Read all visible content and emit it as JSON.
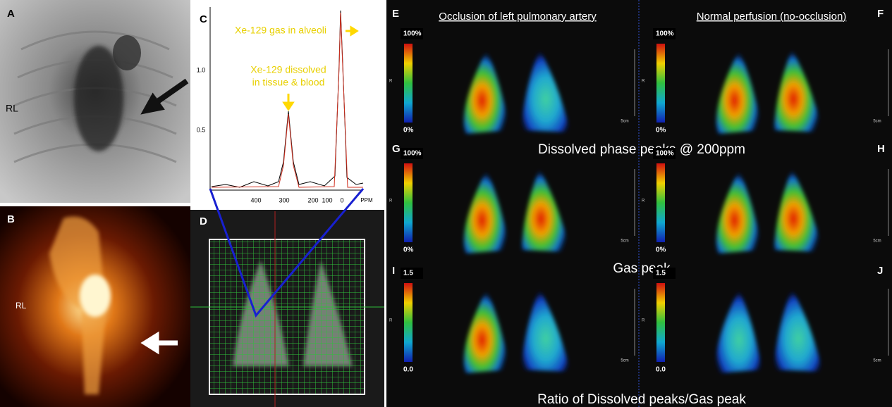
{
  "panel_a": {
    "letter": "A",
    "side_label": "RL"
  },
  "panel_b": {
    "letter": "B",
    "side_label": "RL"
  },
  "panel_c": {
    "letter": "C",
    "gas_label": "Xe-129 gas in alveoli",
    "dissolved_label": [
      "Xe-129 dissolved",
      "in tissue & blood"
    ],
    "x_ticks": [
      "400",
      "300",
      "200",
      "100",
      "0",
      "PPM"
    ],
    "y_ticks": [
      "1.0",
      "0.5"
    ]
  },
  "panel_d": {
    "letter": "D"
  },
  "maps": {
    "left_title": "Occlusion of left pulmonary artery",
    "right_title": "Normal perfusion (no-occlusion)",
    "axis_letter": "R",
    "scale_bar": "5cm",
    "rows": [
      {
        "letters": [
          "E",
          "F"
        ],
        "caption": "Dissolved phase peaks @ 200ppm",
        "scale_top": "100%",
        "scale_bottom": "0%"
      },
      {
        "letters": [
          "G",
          "H"
        ],
        "caption": "Gas peak",
        "scale_top": "100%",
        "scale_bottom": "0%"
      },
      {
        "letters": [
          "I",
          "J"
        ],
        "caption": "Ratio of Dissolved peaks/Gas peak",
        "scale_top": "1.5",
        "scale_bottom": "0.0"
      }
    ]
  }
}
